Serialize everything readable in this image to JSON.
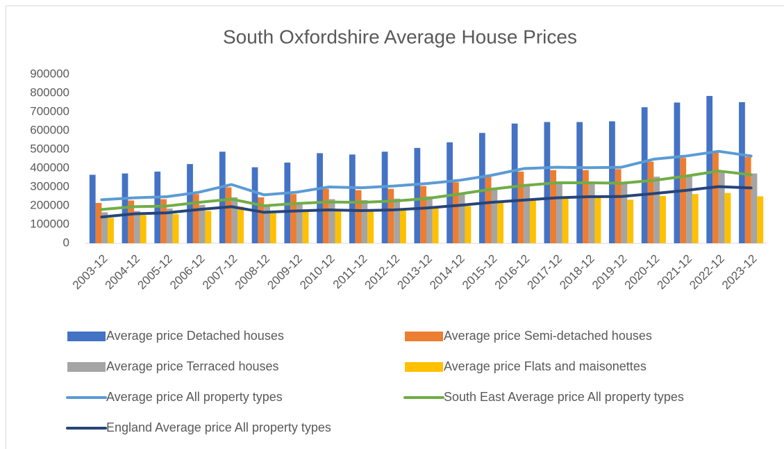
{
  "chart_data": {
    "type": "bar",
    "title": "South Oxfordshire Average House Prices",
    "categories": [
      "2003-12",
      "2004-12",
      "2005-12",
      "2006-12",
      "2007-12",
      "2008-12",
      "2009-12",
      "2010-12",
      "2011-12",
      "2012-12",
      "2013-12",
      "2014-12",
      "2015-12",
      "2016-12",
      "2017-12",
      "2018-12",
      "2019-12",
      "2020-12",
      "2021-12",
      "2022-12",
      "2023-12"
    ],
    "series": [
      {
        "name": "Average price Detached houses",
        "type": "bar",
        "color": "#4472c4",
        "values": [
          365000,
          372000,
          382000,
          422000,
          488000,
          405000,
          430000,
          480000,
          473000,
          488000,
          508000,
          538000,
          588000,
          638000,
          646000,
          646000,
          650000,
          725000,
          750000,
          785000,
          752000
        ]
      },
      {
        "name": "Average price Semi-detached houses",
        "type": "bar",
        "color": "#ed7d31",
        "values": [
          215000,
          228000,
          235000,
          262000,
          298000,
          245000,
          262000,
          290000,
          283000,
          290000,
          305000,
          325000,
          355000,
          382000,
          390000,
          390000,
          395000,
          435000,
          455000,
          485000,
          460000
        ]
      },
      {
        "name": "Average price Terraced houses",
        "type": "bar",
        "color": "#a5a5a5",
        "values": [
          165000,
          172000,
          185000,
          205000,
          245000,
          195000,
          210000,
          235000,
          230000,
          238000,
          250000,
          265000,
          290000,
          310000,
          320000,
          320000,
          318000,
          355000,
          365000,
          380000,
          372000
        ]
      },
      {
        "name": "Average price Flats and maisonettes",
        "type": "bar",
        "color": "#ffc000",
        "values": [
          135000,
          150000,
          155000,
          172000,
          195000,
          160000,
          172000,
          180000,
          175000,
          180000,
          185000,
          198000,
          218000,
          230000,
          240000,
          242000,
          232000,
          252000,
          262000,
          268000,
          250000
        ]
      },
      {
        "name": "Average price All property types",
        "type": "line",
        "color": "#5b9bd5",
        "values": [
          232000,
          242000,
          248000,
          272000,
          313000,
          258000,
          272000,
          300000,
          296000,
          305000,
          318000,
          335000,
          362000,
          398000,
          405000,
          403000,
          405000,
          448000,
          465000,
          490000,
          465000
        ]
      },
      {
        "name": "South East Average price All property types",
        "type": "line",
        "color": "#70ad47",
        "values": [
          180000,
          195000,
          198000,
          218000,
          235000,
          200000,
          212000,
          220000,
          218000,
          225000,
          238000,
          262000,
          288000,
          308000,
          322000,
          322000,
          320000,
          335000,
          358000,
          385000,
          365000
        ]
      },
      {
        "name": "England Average price All property types",
        "type": "line",
        "color": "#264478",
        "values": [
          140000,
          157000,
          162000,
          180000,
          195000,
          165000,
          172000,
          178000,
          174000,
          178000,
          188000,
          202000,
          218000,
          230000,
          242000,
          248000,
          249000,
          265000,
          282000,
          302000,
          295000
        ]
      }
    ],
    "ylim": [
      0,
      900000
    ],
    "yticks": [
      0,
      100000,
      200000,
      300000,
      400000,
      500000,
      600000,
      700000,
      800000,
      900000
    ],
    "legend": "bottom"
  }
}
